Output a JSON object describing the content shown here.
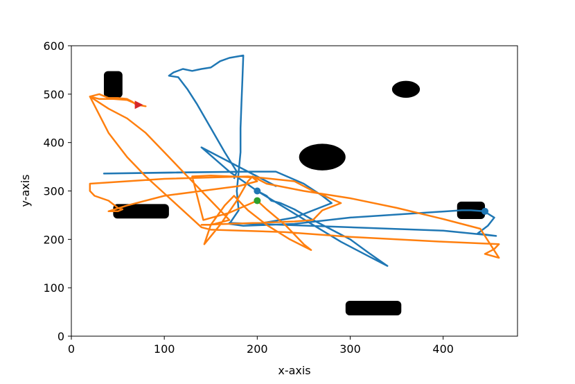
{
  "chart_data": {
    "type": "line",
    "title": "",
    "xlabel": "x-axis",
    "ylabel": "y-axis",
    "xlim": [
      0,
      480
    ],
    "ylim": [
      0,
      600
    ],
    "xticks": [
      0,
      100,
      200,
      300,
      400
    ],
    "yticks": [
      0,
      100,
      200,
      300,
      400,
      500,
      600
    ],
    "grid": false,
    "legend": "none",
    "obstacles": [
      {
        "shape": "rect",
        "cx": 45,
        "cy": 520,
        "w": 20,
        "h": 55
      },
      {
        "shape": "rect",
        "cx": 75,
        "cy": 258,
        "w": 60,
        "h": 30
      },
      {
        "shape": "rect",
        "cx": 430,
        "cy": 260,
        "w": 30,
        "h": 36
      },
      {
        "shape": "rect",
        "cx": 325,
        "cy": 58,
        "w": 60,
        "h": 30
      },
      {
        "shape": "ellipse",
        "cx": 270,
        "cy": 370,
        "w": 50,
        "h": 55
      },
      {
        "shape": "ellipse",
        "cx": 360,
        "cy": 510,
        "w": 30,
        "h": 35
      }
    ],
    "series": [
      {
        "color": "#1f77b4",
        "points": [
          [
            200,
            300
          ],
          [
            210,
            290
          ],
          [
            215,
            280
          ],
          [
            225,
            275
          ],
          [
            240,
            262
          ],
          [
            260,
            240
          ],
          [
            280,
            220
          ],
          [
            300,
            200
          ],
          [
            320,
            172
          ],
          [
            340,
            145
          ],
          [
            320,
            165
          ],
          [
            290,
            195
          ],
          [
            260,
            230
          ],
          [
            230,
            265
          ],
          [
            200,
            300
          ],
          [
            170,
            340
          ],
          [
            140,
            390
          ],
          [
            170,
            360
          ],
          [
            200,
            330
          ],
          [
            220,
            310
          ],
          [
            190,
            340
          ],
          [
            35,
            336
          ],
          [
            100,
            338
          ],
          [
            190,
            340
          ],
          [
            220,
            340
          ],
          [
            250,
            315
          ],
          [
            270,
            290
          ],
          [
            280,
            275
          ],
          [
            240,
            245
          ],
          [
            200,
            232
          ],
          [
            170,
            234
          ],
          [
            400,
            218
          ],
          [
            457,
            207
          ],
          [
            437,
            212
          ],
          [
            448,
            228
          ],
          [
            455,
            245
          ],
          [
            444,
            258
          ],
          [
            430,
            260
          ],
          [
            420,
            260
          ],
          [
            300,
            245
          ],
          [
            240,
            232
          ],
          [
            185,
            228
          ],
          [
            170,
            232
          ],
          [
            180,
            260
          ],
          [
            178,
            300
          ],
          [
            180,
            340
          ],
          [
            182,
            380
          ],
          [
            182,
            430
          ],
          [
            183,
            480
          ],
          [
            184,
            530
          ],
          [
            185,
            580
          ],
          [
            170,
            575
          ],
          [
            160,
            568
          ],
          [
            150,
            555
          ],
          [
            140,
            552
          ],
          [
            135,
            550
          ],
          [
            130,
            548
          ],
          [
            120,
            552
          ],
          [
            110,
            545
          ],
          [
            105,
            538
          ],
          [
            115,
            535
          ],
          [
            125,
            510
          ],
          [
            135,
            480
          ],
          [
            150,
            430
          ],
          [
            165,
            380
          ],
          [
            178,
            340
          ],
          [
            175,
            325
          ]
        ]
      },
      {
        "color": "#ff7f0e",
        "points": [
          [
            200,
            280
          ],
          [
            210,
            262
          ],
          [
            230,
            230
          ],
          [
            250,
            190
          ],
          [
            258,
            178
          ],
          [
            235,
            200
          ],
          [
            210,
            230
          ],
          [
            190,
            260
          ],
          [
            175,
            290
          ],
          [
            165,
            270
          ],
          [
            150,
            230
          ],
          [
            143,
            190
          ],
          [
            160,
            230
          ],
          [
            178,
            280
          ],
          [
            190,
            320
          ],
          [
            195,
            330
          ],
          [
            210,
            315
          ],
          [
            250,
            300
          ],
          [
            300,
            285
          ],
          [
            350,
            265
          ],
          [
            400,
            242
          ],
          [
            440,
            222
          ],
          [
            460,
            162
          ],
          [
            445,
            170
          ],
          [
            455,
            180
          ],
          [
            460,
            190
          ],
          [
            400,
            195
          ],
          [
            300,
            205
          ],
          [
            230,
            215
          ],
          [
            150,
            220
          ],
          [
            140,
            225
          ],
          [
            120,
            260
          ],
          [
            100,
            295
          ],
          [
            80,
            330
          ],
          [
            60,
            370
          ],
          [
            40,
            420
          ],
          [
            20,
            495
          ],
          [
            30,
            500
          ],
          [
            40,
            492
          ],
          [
            50,
            492
          ],
          [
            60,
            490
          ],
          [
            65,
            485
          ],
          [
            70,
            478
          ],
          [
            80,
            475
          ],
          [
            72,
            478
          ],
          [
            60,
            488
          ],
          [
            45,
            490
          ],
          [
            30,
            490
          ],
          [
            20,
            495
          ],
          [
            40,
            470
          ],
          [
            60,
            450
          ],
          [
            80,
            420
          ],
          [
            100,
            380
          ],
          [
            120,
            340
          ],
          [
            140,
            300
          ],
          [
            160,
            260
          ],
          [
            170,
            240
          ],
          [
            150,
            230
          ],
          [
            140,
            230
          ],
          [
            240,
            237
          ],
          [
            260,
            240
          ],
          [
            270,
            260
          ],
          [
            290,
            275
          ],
          [
            260,
            300
          ],
          [
            240,
            320
          ],
          [
            190,
            330
          ],
          [
            100,
            325
          ],
          [
            20,
            315
          ],
          [
            20,
            300
          ],
          [
            25,
            290
          ],
          [
            40,
            280
          ],
          [
            50,
            265
          ],
          [
            55,
            262
          ],
          [
            50,
            258
          ],
          [
            40,
            258
          ],
          [
            60,
            270
          ],
          [
            100,
            290
          ],
          [
            140,
            300
          ],
          [
            180,
            310
          ],
          [
            200,
            320
          ],
          [
            195,
            328
          ],
          [
            150,
            332
          ],
          [
            130,
            330
          ],
          [
            142,
            240
          ],
          [
            170,
            255
          ],
          [
            200,
            280
          ]
        ]
      }
    ],
    "markers": [
      {
        "shape": "circle",
        "x": 200,
        "y": 300,
        "color": "#1f77b4"
      },
      {
        "shape": "circle",
        "x": 200,
        "y": 280,
        "color": "#2ca02c"
      },
      {
        "shape": "circle",
        "x": 445,
        "y": 258,
        "color": "#1f77b4"
      },
      {
        "shape": "triangle-right",
        "x": 72,
        "y": 478,
        "color": "#d62728"
      }
    ]
  }
}
